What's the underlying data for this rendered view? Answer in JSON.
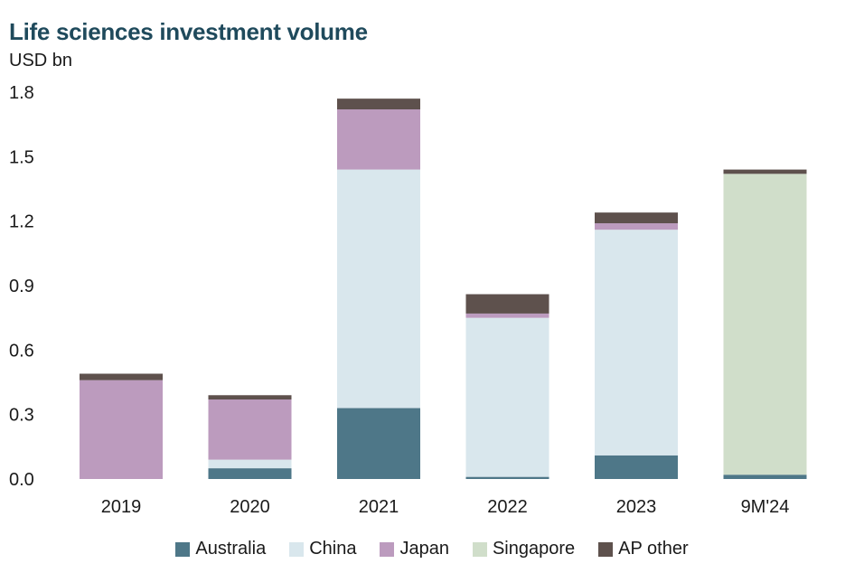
{
  "chart_data": {
    "type": "bar",
    "stacked": true,
    "title": "Life sciences investment volume",
    "ylabel": "USD bn",
    "xlabel": "",
    "ylim": [
      0,
      1.8
    ],
    "yticks": [
      "1.8",
      "1.5",
      "1.2",
      "0.9",
      "0.6",
      "0.3",
      "0.0"
    ],
    "categories": [
      "2019",
      "2020",
      "2021",
      "2022",
      "2023",
      "9M'24"
    ],
    "series": [
      {
        "name": "Australia",
        "color": "#4e7788",
        "values": [
          0.0,
          0.05,
          0.33,
          0.01,
          0.11,
          0.02
        ]
      },
      {
        "name": "China",
        "color": "#d9e7ed",
        "values": [
          0.0,
          0.04,
          1.11,
          0.74,
          1.05,
          0.0
        ]
      },
      {
        "name": "Japan",
        "color": "#bc9bbe",
        "values": [
          0.46,
          0.28,
          0.28,
          0.02,
          0.03,
          0.0
        ]
      },
      {
        "name": "Singapore",
        "color": "#d0deca",
        "values": [
          0.0,
          0.0,
          0.0,
          0.0,
          0.0,
          1.4
        ]
      },
      {
        "name": "AP other",
        "color": "#5e514d",
        "values": [
          0.03,
          0.02,
          0.05,
          0.09,
          0.05,
          0.02
        ]
      }
    ],
    "grid": false,
    "legend": "bottom"
  }
}
